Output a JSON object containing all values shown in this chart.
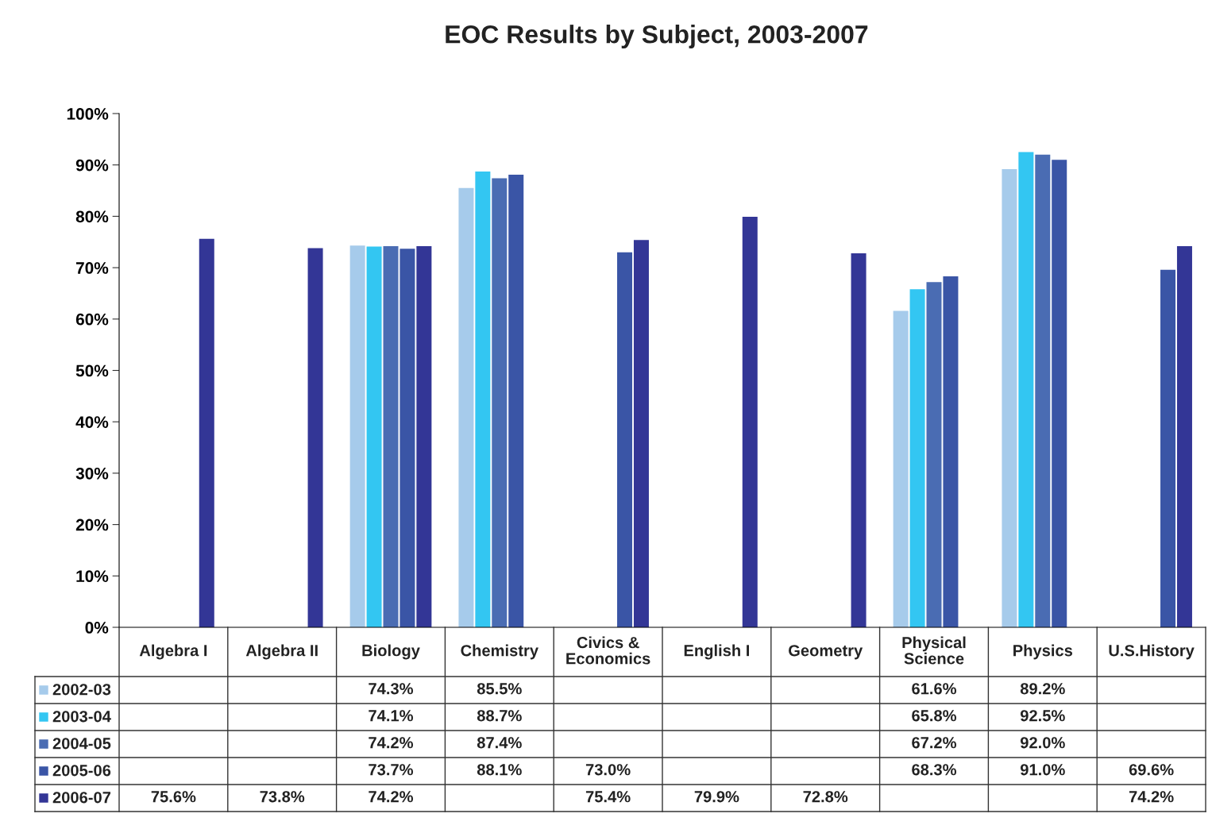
{
  "chart_data": {
    "type": "bar",
    "title": "EOC Results by Subject, 2003-2007",
    "categories": [
      "Algebra I",
      "Algebra II",
      "Biology",
      "Chemistry",
      "Civics &\nEconomics",
      "English I",
      "Geometry",
      "Physical\nScience",
      "Physics",
      "U.S.History"
    ],
    "ylim": [
      0,
      100
    ],
    "yticks": [
      {
        "value": 0,
        "label": "0%"
      },
      {
        "value": 10,
        "label": "10%"
      },
      {
        "value": 20,
        "label": "20%"
      },
      {
        "value": 30,
        "label": "30%"
      },
      {
        "value": 40,
        "label": "40%"
      },
      {
        "value": 50,
        "label": "50%"
      },
      {
        "value": 60,
        "label": "60%"
      },
      {
        "value": 70,
        "label": "70%"
      },
      {
        "value": 80,
        "label": "80%"
      },
      {
        "value": 90,
        "label": "90%"
      },
      {
        "value": 100,
        "label": "100%"
      }
    ],
    "legend": "bottom",
    "series": [
      {
        "name": "2002-03",
        "color": "#a6cbeb",
        "values": [
          null,
          null,
          74.3,
          85.5,
          null,
          null,
          null,
          61.6,
          89.2,
          null
        ],
        "value_labels": [
          null,
          null,
          "74.3%",
          "85.5%",
          null,
          null,
          null,
          "61.6%",
          "89.2%",
          null
        ]
      },
      {
        "name": "2003-04",
        "color": "#33c6f2",
        "values": [
          null,
          null,
          74.1,
          88.7,
          null,
          null,
          null,
          65.8,
          92.5,
          null
        ],
        "value_labels": [
          null,
          null,
          "74.1%",
          "88.7%",
          null,
          null,
          null,
          "65.8%",
          "92.5%",
          null
        ]
      },
      {
        "name": "2004-05",
        "color": "#4a6cb3",
        "values": [
          null,
          null,
          74.2,
          87.4,
          null,
          null,
          null,
          67.2,
          92.0,
          null
        ],
        "value_labels": [
          null,
          null,
          "74.2%",
          "87.4%",
          null,
          null,
          null,
          "67.2%",
          "92.0%",
          null
        ]
      },
      {
        "name": "2005-06",
        "color": "#3a55a6",
        "values": [
          null,
          null,
          73.7,
          88.1,
          73.0,
          null,
          null,
          68.3,
          91.0,
          69.6
        ],
        "value_labels": [
          null,
          null,
          "73.7%",
          "88.1%",
          "73.0%",
          null,
          null,
          "68.3%",
          "91.0%",
          "69.6%"
        ]
      },
      {
        "name": "2006-07",
        "color": "#333696",
        "values": [
          75.6,
          73.8,
          74.2,
          null,
          75.4,
          79.9,
          72.8,
          null,
          null,
          74.2
        ],
        "value_labels": [
          "75.6%",
          "73.8%",
          "74.2%",
          null,
          "75.4%",
          "79.9%",
          "72.8%",
          null,
          null,
          "74.2%"
        ]
      }
    ]
  }
}
